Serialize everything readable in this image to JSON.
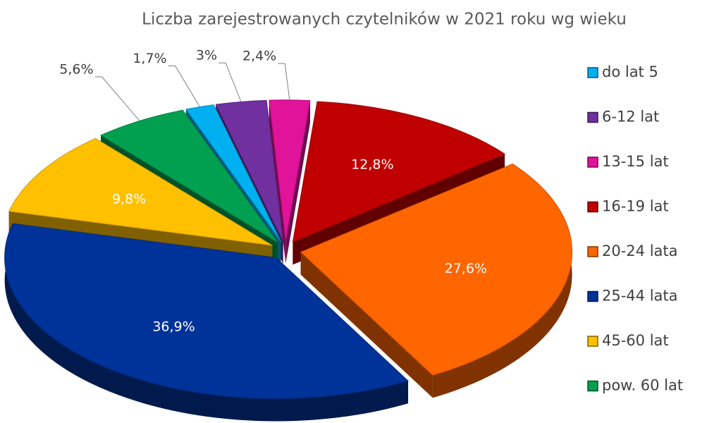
{
  "chart_data": {
    "type": "pie3d",
    "title": "Liczba zarejestrowanych czytelników w 2021 roku wg wieku",
    "categories": [
      "do lat 5",
      "6-12 lat",
      "13-15 lat",
      "16-19 lat",
      "20-24 lata",
      "25-44 lata",
      "45-60 lat",
      "pow. 60 lat"
    ],
    "values": [
      1.7,
      3,
      2.4,
      12.8,
      27.6,
      36.9,
      9.8,
      5.6
    ],
    "value_labels": [
      "1,7%",
      "3%",
      "2,4%",
      "12,8%",
      "27,6%",
      "36,9%",
      "9,8%",
      "5,6%"
    ],
    "colors": [
      "#00b0f0",
      "#7030a0",
      "#e0139a",
      "#c00000",
      "#ff6600",
      "#003399",
      "#ffc000",
      "#00a050"
    ],
    "legend": "right"
  }
}
